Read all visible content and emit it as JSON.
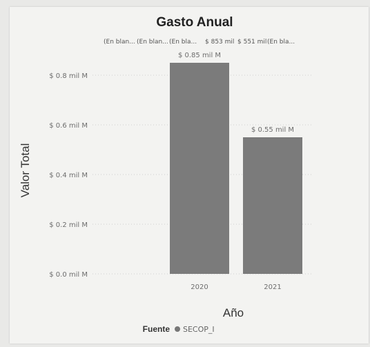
{
  "chart_data": {
    "type": "bar",
    "title": "Gasto Anual",
    "xlabel": "Año",
    "ylabel": "Valor Total",
    "categories": [
      "2020",
      "2021"
    ],
    "series": [
      {
        "name": "SECOP_I",
        "values": [
          0.85,
          0.55
        ]
      }
    ],
    "data_labels": [
      "$ 0.85 mil M",
      "$ 0.55 mil M"
    ],
    "ylim": [
      0,
      0.8
    ],
    "yticks": [
      0,
      0.2,
      0.4,
      0.6,
      0.8
    ],
    "ytick_labels": [
      "$ 0.0 mil M",
      "$ 0.2 mil M",
      "$ 0.4 mil M",
      "$ 0.6 mil M",
      "$ 0.8 mil M"
    ],
    "grid": true,
    "legend": {
      "title": "Fuente",
      "items": [
        "SECOP_I"
      ],
      "position": "bottom"
    },
    "overlay_labels": [
      "(En blan...",
      "(En blan...",
      "(En bla...",
      "$ 853 mil",
      "$ 551 mil",
      "(En bla..."
    ],
    "colors": {
      "bar": "#7b7b7b",
      "legend_marker": "#777777",
      "grid": "#cfcfcf"
    }
  }
}
